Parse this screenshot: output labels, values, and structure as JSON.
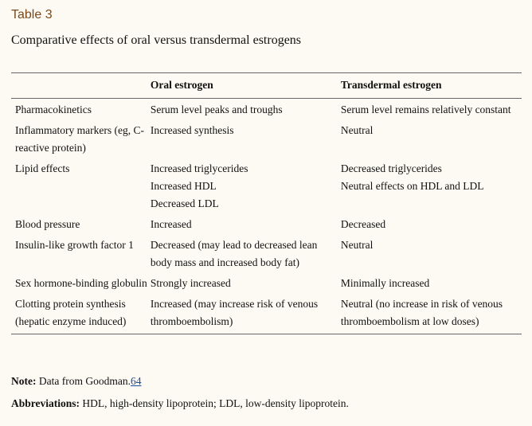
{
  "label": "Table 3",
  "caption": "Comparative effects of oral versus transdermal estrogens",
  "headers": [
    "",
    "Oral estrogen",
    "Transdermal estrogen"
  ],
  "rows": [
    {
      "feature": "Pharmacokinetics",
      "oral": [
        "Serum level peaks and troughs"
      ],
      "transdermal": [
        "Serum level remains relatively constant"
      ]
    },
    {
      "feature": "Inflammatory markers (eg, C-reactive protein)",
      "oral": [
        "Increased synthesis"
      ],
      "transdermal": [
        "Neutral"
      ]
    },
    {
      "feature": "Lipid effects",
      "oral": [
        "Increased triglycerides",
        "Increased HDL",
        "Decreased LDL"
      ],
      "transdermal": [
        "Decreased triglycerides",
        "Neutral effects on HDL and LDL"
      ]
    },
    {
      "feature": "Blood pressure",
      "oral": [
        "Increased"
      ],
      "transdermal": [
        "Decreased"
      ]
    },
    {
      "feature": "Insulin-like growth factor 1",
      "oral": [
        "Decreased (may lead to decreased lean body mass and increased body fat)"
      ],
      "transdermal": [
        "Neutral"
      ]
    },
    {
      "feature": "Sex hormone-binding globulin",
      "oral": [
        "Strongly increased"
      ],
      "transdermal": [
        "Minimally increased"
      ]
    },
    {
      "feature": "Clotting protein synthesis (hepatic enzyme induced)",
      "oral": [
        "Increased (may increase risk of venous thromboembolism)"
      ],
      "transdermal": [
        "Neutral (no increase in risk of venous thromboembolism at low doses)"
      ]
    }
  ],
  "note": {
    "label": "Note:",
    "text": "Data from Goodman.",
    "ref": "64"
  },
  "abbreviations": {
    "label": "Abbreviations:",
    "text": "HDL, high-density lipoprotein; LDL, low-density lipoprotein."
  }
}
